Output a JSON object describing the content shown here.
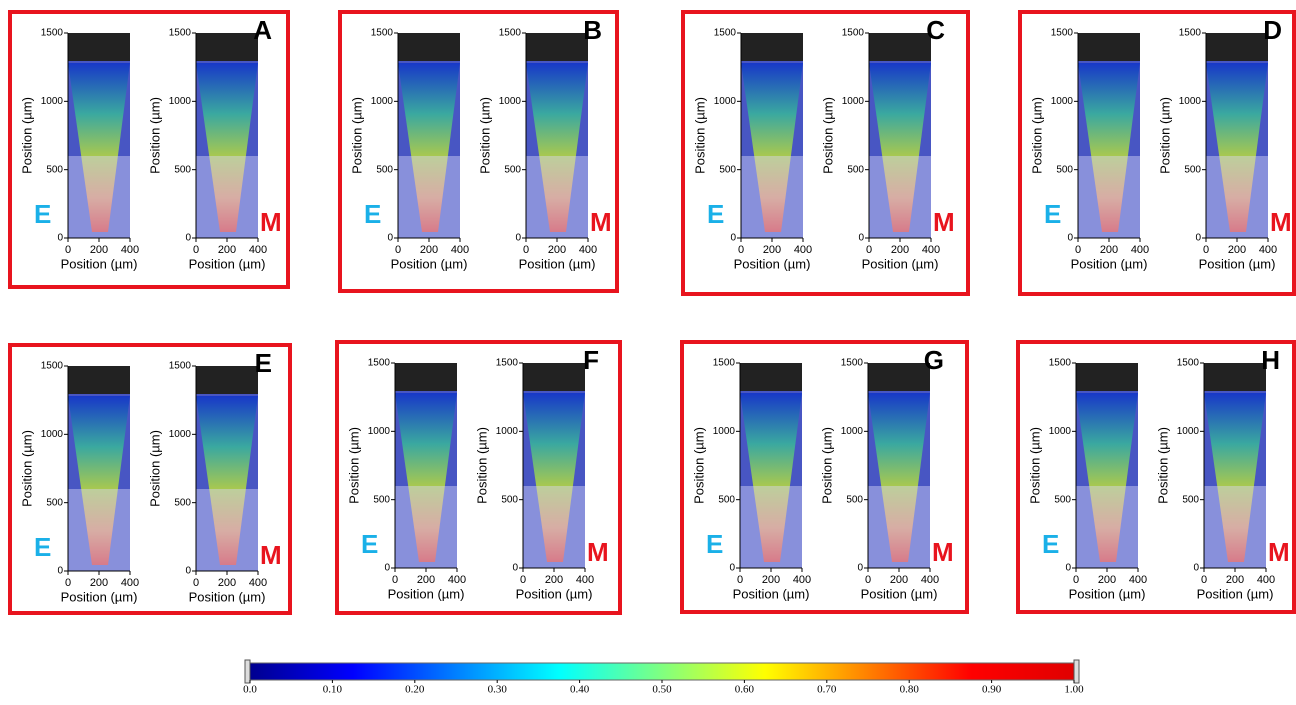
{
  "panels": [
    {
      "letter": "A",
      "left_label": "E",
      "right_label": "M"
    },
    {
      "letter": "B",
      "left_label": "E",
      "right_label": "M"
    },
    {
      "letter": "C",
      "left_label": "E",
      "right_label": "M"
    },
    {
      "letter": "D",
      "left_label": "E",
      "right_label": "M"
    },
    {
      "letter": "E",
      "left_label": "E",
      "right_label": "M"
    },
    {
      "letter": "F",
      "left_label": "E",
      "right_label": "M"
    },
    {
      "letter": "G",
      "left_label": "E",
      "right_label": "M"
    },
    {
      "letter": "H",
      "left_label": "E",
      "right_label": "M"
    }
  ],
  "axes": {
    "x_label": "Position (µm)",
    "y_label": "Position (µm)",
    "xlim": [
      0,
      400
    ],
    "ylim": [
      0,
      1500
    ],
    "xticks": [
      0,
      200,
      400
    ],
    "yticks": [
      0,
      500,
      1000,
      1500
    ]
  },
  "colorbar": {
    "lim": [
      0,
      1
    ],
    "colors": [
      "#00008f",
      "#0000ff",
      "#0080ff",
      "#00ffff",
      "#80ff80",
      "#ffff00",
      "#ff8000",
      "#ff0000",
      "#e00000"
    ],
    "ticks": [
      {
        "value": 0,
        "label": "0.0"
      },
      {
        "value": 0.1,
        "label": "0.10"
      },
      {
        "value": 0.2,
        "label": "0.20"
      },
      {
        "value": 0.3,
        "label": "0.30"
      },
      {
        "value": 0.4,
        "label": "0.40"
      },
      {
        "value": 0.5,
        "label": "0.50"
      },
      {
        "value": 0.6,
        "label": "0.60"
      },
      {
        "value": 0.7,
        "label": "0.70"
      },
      {
        "value": 0.8,
        "label": "0.80"
      },
      {
        "value": 0.9,
        "label": "0.90"
      },
      {
        "value": 1,
        "label": "1.00"
      }
    ]
  }
}
